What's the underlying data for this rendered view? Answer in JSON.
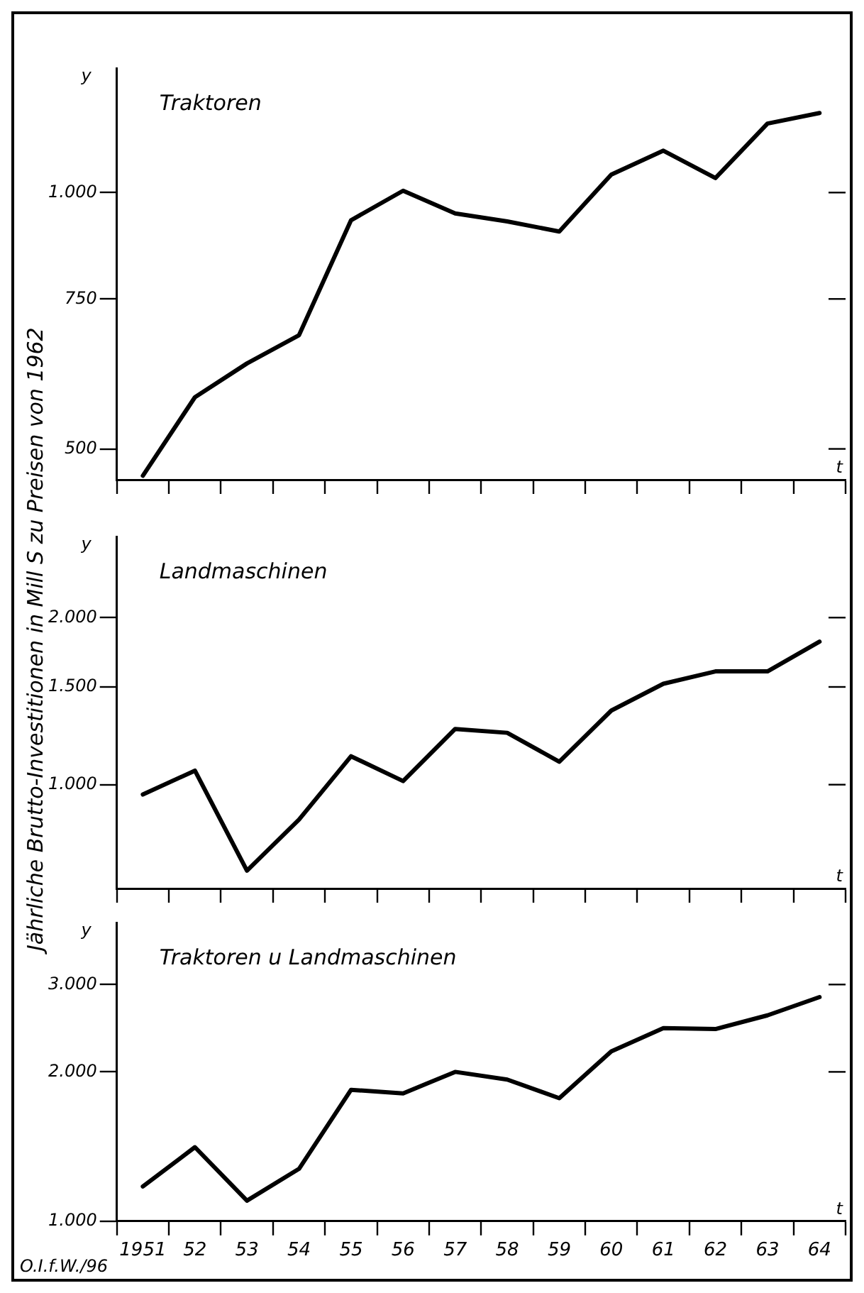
{
  "chart_data": [
    {
      "type": "line",
      "title": "Traktoren",
      "ylabel": "y",
      "xlabel": "t",
      "categories": [
        "1951",
        "52",
        "53",
        "54",
        "55",
        "56",
        "57",
        "58",
        "59",
        "60",
        "61",
        "62",
        "63",
        "64"
      ],
      "series": [
        {
          "color": "#000000",
          "values": [
            465,
            575,
            630,
            680,
            928,
            1005,
            945,
            925,
            900,
            1050,
            1120,
            1040,
            1205,
            1240
          ]
        }
      ],
      "ylim": [
        460,
        1400
      ],
      "yticks": [
        500,
        750,
        {
          "value": 1000,
          "label": "1.000"
        }
      ],
      "log": true,
      "grid": false,
      "legend": false,
      "marker": "none",
      "line_style": "solid",
      "tick_labels": "y",
      "annotations": [
        "Jährliche Brutto-Investitionen in Mill S zu Preisen von 1962"
      ]
    },
    {
      "type": "line",
      "title": "Landmaschinen",
      "ylabel": "y",
      "xlabel": "t",
      "categories": [
        "1951",
        "52",
        "53",
        "54",
        "55",
        "56",
        "57",
        "58",
        "59",
        "60",
        "61",
        "62",
        "63",
        "64"
      ],
      "series": [
        {
          "color": "#000000",
          "values": [
            960,
            1060,
            700,
            865,
            1125,
            1015,
            1260,
            1240,
            1100,
            1360,
            1520,
            1600,
            1600,
            1810
          ]
        }
      ],
      "ylim": [
        650,
        2800
      ],
      "yticks": [
        {
          "value": 1000,
          "label": "1.000"
        },
        {
          "value": 1500,
          "label": "1.500"
        },
        {
          "value": 2000,
          "label": "2.000"
        }
      ],
      "log": true,
      "grid": false,
      "legend": false,
      "marker": "none",
      "line_style": "solid",
      "tick_labels": "y"
    },
    {
      "type": "line",
      "title": "Traktoren u Landmaschinen",
      "ylabel": "y",
      "xlabel": "t",
      "categories": [
        "1951",
        "52",
        "53",
        "54",
        "55",
        "56",
        "57",
        "58",
        "59",
        "60",
        "61",
        "62",
        "63",
        "64"
      ],
      "series": [
        {
          "color": "#000000",
          "values": [
            1175,
            1410,
            1100,
            1275,
            1840,
            1810,
            2000,
            1930,
            1770,
            2200,
            2450,
            2440,
            2600,
            2830
          ]
        }
      ],
      "ylim": [
        1000,
        4000
      ],
      "yticks": [
        {
          "value": 1000,
          "label": "1.000"
        },
        {
          "value": 2000,
          "label": "2.000"
        },
        {
          "value": 3000,
          "label": "3.000"
        }
      ],
      "log": true,
      "grid": false,
      "legend": false,
      "marker": "none",
      "line_style": "solid",
      "annotations": [
        "O.I.f.W./96"
      ]
    }
  ]
}
